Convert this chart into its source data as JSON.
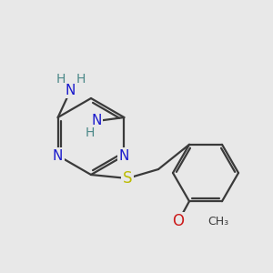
{
  "bg_color": "#e8e8e8",
  "bond_color": "#3a3a3a",
  "bond_width": 1.6,
  "atom_colors": {
    "N": "#1a1acc",
    "S": "#bbbb00",
    "O": "#cc1a1a",
    "H": "#4a8888",
    "C": "#3a3a3a"
  },
  "fig_size": [
    3.0,
    3.0
  ],
  "dpi": 100
}
